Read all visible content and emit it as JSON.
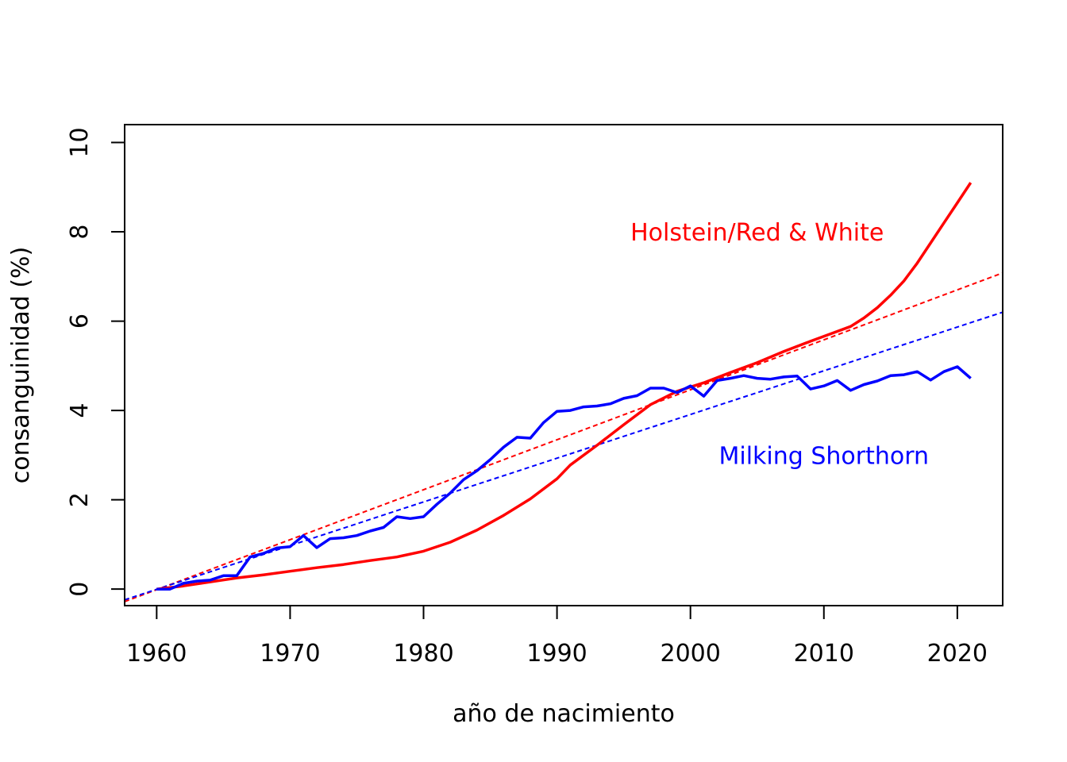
{
  "chart_data": {
    "type": "line",
    "title": "",
    "xlabel": "año de nacimiento",
    "ylabel": "consanguinidad (%)",
    "xlim": [
      1957.6,
      2023.4
    ],
    "ylim": [
      -0.37,
      10.4
    ],
    "x_ticks": [
      1960,
      1970,
      1980,
      1990,
      2000,
      2010,
      2020
    ],
    "y_ticks": [
      0,
      2,
      4,
      6,
      8,
      10
    ],
    "x_tick_labels": [
      "1960",
      "1970",
      "1980",
      "1990",
      "2000",
      "2010",
      "2020"
    ],
    "y_tick_labels": [
      "0",
      "2",
      "4",
      "6",
      "8",
      "10"
    ],
    "grid": false,
    "series": [
      {
        "name": "Holstein/Red & White",
        "color": "#ff0000",
        "x": [
          1960,
          1962,
          1964,
          1966,
          1968,
          1970,
          1972,
          1974,
          1976,
          1978,
          1980,
          1982,
          1984,
          1986,
          1988,
          1990,
          1991,
          1993,
          1995,
          1997,
          1999,
          2001,
          2003,
          2005,
          2007,
          2009,
          2011,
          2012,
          2013,
          2014,
          2015,
          2016,
          2017,
          2018,
          2019,
          2020,
          2021
        ],
        "y": [
          0.0,
          0.07,
          0.16,
          0.25,
          0.32,
          0.4,
          0.48,
          0.55,
          0.64,
          0.72,
          0.85,
          1.05,
          1.32,
          1.65,
          2.02,
          2.47,
          2.78,
          3.22,
          3.68,
          4.13,
          4.43,
          4.62,
          4.85,
          5.07,
          5.32,
          5.55,
          5.77,
          5.88,
          6.07,
          6.3,
          6.58,
          6.9,
          7.3,
          7.75,
          8.2,
          8.65,
          9.1
        ]
      },
      {
        "name": "Milking Shorthorn",
        "color": "#0000ff",
        "x": [
          1960,
          1961,
          1962,
          1963,
          1964,
          1965,
          1966,
          1967,
          1968,
          1969,
          1970,
          1971,
          1972,
          1973,
          1974,
          1975,
          1976,
          1977,
          1978,
          1979,
          1980,
          1981,
          1982,
          1983,
          1984,
          1985,
          1986,
          1987,
          1988,
          1989,
          1990,
          1991,
          1992,
          1993,
          1994,
          1995,
          1996,
          1997,
          1998,
          1999,
          2000,
          2001,
          2002,
          2003,
          2004,
          2005,
          2006,
          2007,
          2008,
          2009,
          2010,
          2011,
          2012,
          2013,
          2014,
          2015,
          2016,
          2017,
          2018,
          2019,
          2020,
          2021
        ],
        "y": [
          0.0,
          0.0,
          0.13,
          0.18,
          0.2,
          0.3,
          0.3,
          0.72,
          0.8,
          0.92,
          0.95,
          1.2,
          0.93,
          1.13,
          1.15,
          1.2,
          1.3,
          1.38,
          1.62,
          1.58,
          1.62,
          1.9,
          2.15,
          2.45,
          2.65,
          2.9,
          3.18,
          3.4,
          3.38,
          3.73,
          3.98,
          4.0,
          4.08,
          4.1,
          4.15,
          4.27,
          4.33,
          4.5,
          4.5,
          4.4,
          4.55,
          4.32,
          4.67,
          4.72,
          4.78,
          4.72,
          4.7,
          4.75,
          4.77,
          4.48,
          4.55,
          4.67,
          4.45,
          4.58,
          4.66,
          4.78,
          4.8,
          4.87,
          4.68,
          4.87,
          4.98,
          4.72
        ]
      }
    ],
    "trend_lines": [
      {
        "series": "Holstein/Red & White",
        "color": "#ff0000",
        "style": "dashed",
        "x": [
          1957.6,
          2023.4
        ],
        "y": [
          -0.28,
          7.08
        ]
      },
      {
        "series": "Milking Shorthorn",
        "color": "#0000ff",
        "style": "dashed",
        "x": [
          1957.6,
          2023.4
        ],
        "y": [
          -0.24,
          6.2
        ]
      }
    ],
    "annotations": [
      {
        "text": "Holstein/Red & White",
        "color": "#ff0000",
        "x": 2005,
        "y": 8.0
      },
      {
        "text": "Milking Shorthorn",
        "color": "#0000ff",
        "x": 2010,
        "y": 3.0
      }
    ]
  }
}
